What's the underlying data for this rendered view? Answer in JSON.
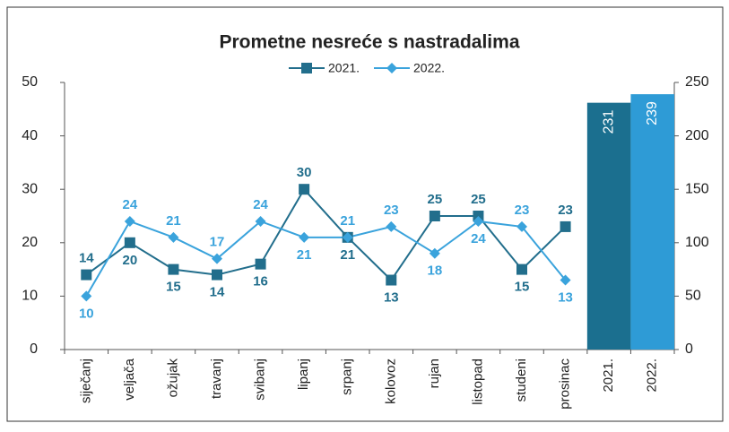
{
  "chart_data": {
    "type": "line",
    "title": "Prometne  nesreće s nastradalima",
    "categories": [
      "siječanj",
      "veljača",
      "ožujak",
      "travanj",
      "svibanj",
      "lipanj",
      "srpanj",
      "kolovoz",
      "rujan",
      "listopad",
      "studeni",
      "prosinac",
      "2021.",
      "2022."
    ],
    "series": [
      {
        "name": "2021.",
        "type": "line",
        "marker": "square",
        "color": "#226e8c",
        "values": [
          14,
          20,
          15,
          14,
          16,
          30,
          21,
          13,
          25,
          25,
          15,
          23,
          null,
          null
        ]
      },
      {
        "name": "2022.",
        "type": "line",
        "marker": "diamond",
        "color": "#3aa3dc",
        "values": [
          10,
          24,
          21,
          17,
          24,
          21,
          21,
          23,
          18,
          24,
          23,
          13,
          null,
          null
        ]
      },
      {
        "type": "bar",
        "axis": "y2",
        "colors": [
          null,
          null,
          null,
          null,
          null,
          null,
          null,
          null,
          null,
          null,
          null,
          null,
          "#1b6f8f",
          "#2e9bd6"
        ],
        "values": [
          null,
          null,
          null,
          null,
          null,
          null,
          null,
          null,
          null,
          null,
          null,
          null,
          231,
          239
        ]
      }
    ],
    "ylim": [
      0,
      50
    ],
    "yticks": [
      0,
      10,
      20,
      30,
      40,
      50
    ],
    "y2lim": [
      0,
      250
    ],
    "y2ticks": [
      0,
      50,
      100,
      150,
      200,
      250
    ],
    "grid": false
  }
}
